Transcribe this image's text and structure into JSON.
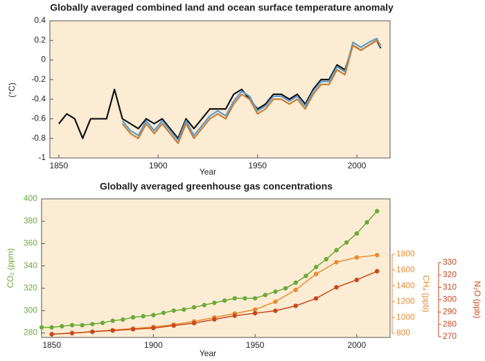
{
  "chart_data": [
    {
      "type": "line",
      "title": "Globally averaged combined land and ocean surface temperature anomaly",
      "xlabel": "Year",
      "ylabel": "(°C)",
      "x": [
        1850,
        1854,
        1858,
        1862,
        1866,
        1870,
        1874,
        1878,
        1882,
        1886,
        1890,
        1894,
        1898,
        1902,
        1906,
        1910,
        1914,
        1918,
        1922,
        1926,
        1930,
        1934,
        1938,
        1942,
        1946,
        1950,
        1954,
        1958,
        1962,
        1966,
        1970,
        1974,
        1978,
        1982,
        1986,
        1990,
        1994,
        1998,
        2002,
        2006,
        2010,
        2012
      ],
      "series": [
        {
          "color": "#111111",
          "values": [
            -0.65,
            -0.55,
            -0.6,
            -0.8,
            -0.6,
            -0.6,
            -0.6,
            -0.3,
            -0.6,
            -0.65,
            -0.7,
            -0.6,
            -0.65,
            -0.6,
            -0.7,
            -0.8,
            -0.6,
            -0.7,
            -0.6,
            -0.5,
            -0.5,
            -0.5,
            -0.35,
            -0.3,
            -0.4,
            -0.5,
            -0.45,
            -0.35,
            -0.35,
            -0.4,
            -0.35,
            -0.45,
            -0.3,
            -0.2,
            -0.2,
            -0.05,
            -0.1,
            0.15,
            0.1,
            0.15,
            0.2,
            0.12
          ]
        },
        {
          "color": "#5b9bd5",
          "values": [
            null,
            null,
            null,
            null,
            null,
            null,
            null,
            null,
            -0.62,
            -0.72,
            -0.77,
            -0.62,
            -0.72,
            -0.62,
            -0.72,
            -0.82,
            -0.62,
            -0.77,
            -0.67,
            -0.57,
            -0.52,
            -0.57,
            -0.42,
            -0.32,
            -0.37,
            -0.52,
            -0.47,
            -0.37,
            -0.37,
            -0.42,
            -0.37,
            -0.47,
            -0.32,
            -0.22,
            -0.22,
            -0.07,
            -0.12,
            0.18,
            0.13,
            0.18,
            0.22,
            0.13
          ]
        },
        {
          "color": "#c87f35",
          "values": [
            null,
            null,
            null,
            null,
            null,
            null,
            null,
            null,
            -0.65,
            -0.75,
            -0.8,
            -0.65,
            -0.75,
            -0.65,
            -0.75,
            -0.85,
            -0.65,
            -0.8,
            -0.7,
            -0.6,
            -0.55,
            -0.6,
            -0.45,
            -0.35,
            -0.4,
            -0.55,
            -0.5,
            -0.4,
            -0.4,
            -0.45,
            -0.4,
            -0.5,
            -0.35,
            -0.25,
            -0.25,
            -0.1,
            -0.15,
            0.15,
            0.1,
            0.15,
            0.2,
            0.15
          ]
        }
      ],
      "xlim": [
        1845.5,
        2016.7
      ],
      "xticks": [
        1850,
        1900,
        1950,
        2000
      ],
      "ylim": [
        -1,
        0.4
      ],
      "yticks": [
        -1,
        -0.8,
        -0.6,
        -0.4,
        -0.2,
        0,
        0.2,
        0.4
      ]
    },
    {
      "type": "scatter",
      "title": "Globally averaged greenhouse gas concentrations",
      "xlabel": "Year",
      "ylabel": "CO₂ (ppm)",
      "y2label": "CH₄ (ppb)",
      "y3label": "N₂O (ppb)",
      "series": [
        {
          "color": "#6aaa3a",
          "axis": "y",
          "x": [
            1845,
            1850,
            1855,
            1860,
            1865,
            1870,
            1875,
            1880,
            1885,
            1890,
            1895,
            1900,
            1905,
            1910,
            1915,
            1920,
            1925,
            1930,
            1935,
            1940,
            1945,
            1950,
            1955,
            1960,
            1965,
            1970,
            1975,
            1980,
            1985,
            1990,
            1995,
            2000,
            2005,
            2010
          ],
          "values": [
            285,
            285,
            286,
            287,
            287,
            288,
            289,
            291,
            292,
            294,
            295,
            296,
            298,
            300,
            301,
            303,
            305,
            307,
            309,
            311,
            311,
            311,
            314,
            317,
            320,
            325,
            331,
            339,
            346,
            354,
            361,
            369,
            379,
            389
          ]
        },
        {
          "color": "#e88a2e",
          "axis": "y2",
          "x": [
            1850,
            1860,
            1870,
            1880,
            1890,
            1900,
            1910,
            1920,
            1930,
            1940,
            1950,
            1960,
            1970,
            1980,
            1990,
            2000,
            2010
          ],
          "values": [
            790,
            800,
            820,
            840,
            860,
            880,
            910,
            950,
            1000,
            1050,
            1100,
            1200,
            1350,
            1550,
            1700,
            1760,
            1790
          ]
        },
        {
          "color": "#c8461d",
          "axis": "y3",
          "x": [
            1850,
            1860,
            1870,
            1880,
            1890,
            1900,
            1910,
            1920,
            1930,
            1940,
            1950,
            1960,
            1970,
            1980,
            1990,
            2000,
            2010
          ],
          "values": [
            272,
            273,
            274,
            275,
            276,
            277,
            279,
            281,
            284,
            287,
            289,
            291,
            295,
            301,
            310,
            316,
            323
          ]
        }
      ],
      "xlim": [
        1845,
        2016.4
      ],
      "xticks": [
        1850,
        1900,
        1950,
        2000
      ],
      "ylim": [
        276,
        400
      ],
      "yticks": [
        280,
        300,
        320,
        340,
        360,
        380,
        400
      ],
      "y2lim": [
        747,
        2502
      ],
      "y2ticks": [
        800,
        1000,
        1200,
        1400,
        1600,
        1800
      ],
      "y3lim": [
        269.4,
        381.6
      ],
      "y3ticks": [
        270,
        280,
        290,
        300,
        310,
        320,
        330
      ]
    }
  ]
}
